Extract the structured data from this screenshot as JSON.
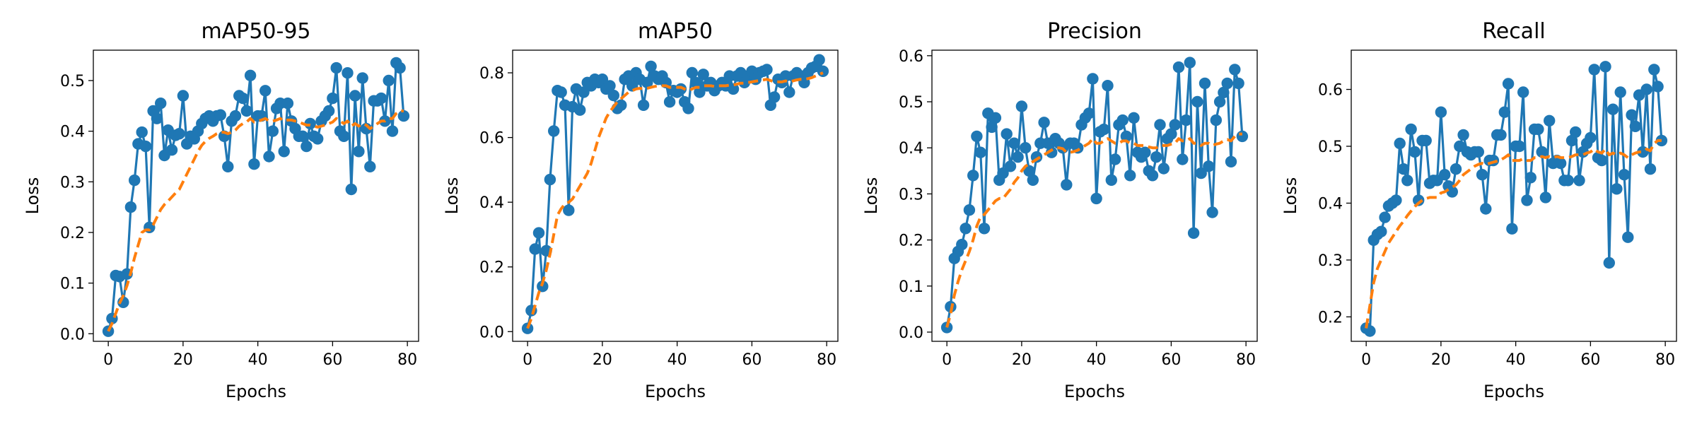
{
  "figure": {
    "colors": {
      "raw": "#1f77b4",
      "smooth": "#ff7f0e"
    }
  },
  "chart_data": [
    {
      "type": "line",
      "title": "mAP50-95",
      "xlabel": "Epochs",
      "ylabel": "Loss",
      "xlim": [
        -4,
        83
      ],
      "ylim": [
        -0.015,
        0.56
      ],
      "xticks": [
        0,
        20,
        40,
        60,
        80
      ],
      "xtick_labels": [
        "0",
        "20",
        "40",
        "60",
        "80"
      ],
      "yticks": [
        0.0,
        0.1,
        0.2,
        0.3,
        0.4,
        0.5
      ],
      "ytick_labels": [
        "0.0",
        "0.1",
        "0.2",
        "0.3",
        "0.4",
        "0.5"
      ],
      "x": [
        0,
        1,
        2,
        3,
        4,
        5,
        6,
        7,
        8,
        9,
        10,
        11,
        12,
        13,
        14,
        15,
        16,
        17,
        18,
        19,
        20,
        21,
        22,
        23,
        24,
        25,
        26,
        27,
        28,
        29,
        30,
        31,
        32,
        33,
        34,
        35,
        36,
        37,
        38,
        39,
        40,
        41,
        42,
        43,
        44,
        45,
        46,
        47,
        48,
        49,
        50,
        51,
        52,
        53,
        54,
        55,
        56,
        57,
        58,
        59,
        60,
        61,
        62,
        63,
        64,
        65,
        66,
        67,
        68,
        69,
        70,
        71,
        72,
        73,
        74,
        75,
        76,
        77,
        78,
        79
      ],
      "series": [
        {
          "style": "raw",
          "values": [
            0.005,
            0.03,
            0.115,
            0.113,
            0.062,
            0.118,
            0.25,
            0.303,
            0.375,
            0.398,
            0.37,
            0.21,
            0.44,
            0.425,
            0.455,
            0.352,
            0.402,
            0.363,
            0.392,
            0.395,
            0.47,
            0.375,
            0.39,
            0.385,
            0.4,
            0.415,
            0.425,
            0.43,
            0.42,
            0.43,
            0.432,
            0.39,
            0.33,
            0.42,
            0.43,
            0.47,
            0.465,
            0.44,
            0.51,
            0.335,
            0.43,
            0.43,
            0.48,
            0.35,
            0.4,
            0.445,
            0.455,
            0.36,
            0.455,
            0.42,
            0.405,
            0.39,
            0.39,
            0.37,
            0.415,
            0.39,
            0.385,
            0.42,
            0.43,
            0.44,
            0.465,
            0.525,
            0.4,
            0.39,
            0.515,
            0.285,
            0.47,
            0.36,
            0.505,
            0.405,
            0.33,
            0.46,
            0.46,
            0.465,
            0.42,
            0.5,
            0.4,
            0.535,
            0.525,
            0.43
          ]
        },
        {
          "style": "smooth",
          "values": [
            0.005,
            0.02,
            0.04,
            0.06,
            0.075,
            0.095,
            0.12,
            0.15,
            0.175,
            0.2,
            0.205,
            0.205,
            0.215,
            0.23,
            0.245,
            0.255,
            0.262,
            0.27,
            0.278,
            0.285,
            0.3,
            0.315,
            0.33,
            0.345,
            0.36,
            0.372,
            0.38,
            0.386,
            0.39,
            0.395,
            0.398,
            0.398,
            0.395,
            0.398,
            0.402,
            0.41,
            0.415,
            0.418,
            0.425,
            0.418,
            0.42,
            0.422,
            0.425,
            0.42,
            0.42,
            0.422,
            0.425,
            0.42,
            0.422,
            0.422,
            0.42,
            0.418,
            0.415,
            0.412,
            0.412,
            0.41,
            0.408,
            0.41,
            0.412,
            0.415,
            0.418,
            0.425,
            0.42,
            0.415,
            0.42,
            0.41,
            0.415,
            0.41,
            0.415,
            0.412,
            0.405,
            0.41,
            0.415,
            0.42,
            0.42,
            0.425,
            0.425,
            0.435,
            0.44,
            0.44
          ]
        }
      ]
    },
    {
      "type": "line",
      "title": "mAP50",
      "xlabel": "Epochs",
      "ylabel": "Loss",
      "xlim": [
        -4,
        83
      ],
      "ylim": [
        -0.03,
        0.87
      ],
      "xticks": [
        0,
        20,
        40,
        60,
        80
      ],
      "xtick_labels": [
        "0",
        "20",
        "40",
        "60",
        "80"
      ],
      "yticks": [
        0.0,
        0.2,
        0.4,
        0.6,
        0.8
      ],
      "ytick_labels": [
        "0.0",
        "0.2",
        "0.4",
        "0.6",
        "0.8"
      ],
      "x": [
        0,
        1,
        2,
        3,
        4,
        5,
        6,
        7,
        8,
        9,
        10,
        11,
        12,
        13,
        14,
        15,
        16,
        17,
        18,
        19,
        20,
        21,
        22,
        23,
        24,
        25,
        26,
        27,
        28,
        29,
        30,
        31,
        32,
        33,
        34,
        35,
        36,
        37,
        38,
        39,
        40,
        41,
        42,
        43,
        44,
        45,
        46,
        47,
        48,
        49,
        50,
        51,
        52,
        53,
        54,
        55,
        56,
        57,
        58,
        59,
        60,
        61,
        62,
        63,
        64,
        65,
        66,
        67,
        68,
        69,
        70,
        71,
        72,
        73,
        74,
        75,
        76,
        77,
        78,
        79
      ],
      "series": [
        {
          "style": "raw",
          "values": [
            0.01,
            0.065,
            0.255,
            0.305,
            0.14,
            0.25,
            0.47,
            0.62,
            0.745,
            0.74,
            0.7,
            0.375,
            0.695,
            0.75,
            0.685,
            0.74,
            0.77,
            0.76,
            0.78,
            0.77,
            0.78,
            0.75,
            0.76,
            0.73,
            0.69,
            0.7,
            0.78,
            0.79,
            0.76,
            0.8,
            0.78,
            0.7,
            0.77,
            0.82,
            0.79,
            0.78,
            0.79,
            0.77,
            0.71,
            0.745,
            0.74,
            0.75,
            0.71,
            0.69,
            0.8,
            0.77,
            0.74,
            0.795,
            0.76,
            0.77,
            0.745,
            0.76,
            0.77,
            0.76,
            0.79,
            0.75,
            0.79,
            0.8,
            0.77,
            0.79,
            0.805,
            0.78,
            0.8,
            0.805,
            0.81,
            0.7,
            0.725,
            0.78,
            0.77,
            0.79,
            0.74,
            0.79,
            0.8,
            0.79,
            0.77,
            0.8,
            0.815,
            0.82,
            0.84,
            0.805
          ]
        },
        {
          "style": "smooth",
          "values": [
            0.01,
            0.04,
            0.08,
            0.12,
            0.15,
            0.19,
            0.24,
            0.3,
            0.36,
            0.38,
            0.395,
            0.4,
            0.41,
            0.43,
            0.45,
            0.47,
            0.49,
            0.52,
            0.56,
            0.6,
            0.63,
            0.66,
            0.68,
            0.695,
            0.71,
            0.72,
            0.73,
            0.74,
            0.745,
            0.75,
            0.752,
            0.75,
            0.752,
            0.755,
            0.758,
            0.76,
            0.76,
            0.76,
            0.755,
            0.755,
            0.755,
            0.755,
            0.75,
            0.745,
            0.75,
            0.755,
            0.755,
            0.76,
            0.76,
            0.76,
            0.758,
            0.76,
            0.76,
            0.76,
            0.762,
            0.762,
            0.765,
            0.768,
            0.768,
            0.77,
            0.772,
            0.774,
            0.776,
            0.778,
            0.78,
            0.776,
            0.772,
            0.772,
            0.772,
            0.775,
            0.772,
            0.775,
            0.778,
            0.78,
            0.78,
            0.782,
            0.785,
            0.79,
            0.795,
            0.8
          ]
        }
      ]
    },
    {
      "type": "line",
      "title": "Precision",
      "xlabel": "Epochs",
      "ylabel": "Loss",
      "xlim": [
        -4,
        83
      ],
      "ylim": [
        -0.02,
        0.612
      ],
      "xticks": [
        0,
        20,
        40,
        60,
        80
      ],
      "xtick_labels": [
        "0",
        "20",
        "40",
        "60",
        "80"
      ],
      "yticks": [
        0.0,
        0.1,
        0.2,
        0.3,
        0.4,
        0.5,
        0.6
      ],
      "ytick_labels": [
        "0.0",
        "0.1",
        "0.2",
        "0.3",
        "0.4",
        "0.5",
        "0.6"
      ],
      "x": [
        0,
        1,
        2,
        3,
        4,
        5,
        6,
        7,
        8,
        9,
        10,
        11,
        12,
        13,
        14,
        15,
        16,
        17,
        18,
        19,
        20,
        21,
        22,
        23,
        24,
        25,
        26,
        27,
        28,
        29,
        30,
        31,
        32,
        33,
        34,
        35,
        36,
        37,
        38,
        39,
        40,
        41,
        42,
        43,
        44,
        45,
        46,
        47,
        48,
        49,
        50,
        51,
        52,
        53,
        54,
        55,
        56,
        57,
        58,
        59,
        60,
        61,
        62,
        63,
        64,
        65,
        66,
        67,
        68,
        69,
        70,
        71,
        72,
        73,
        74,
        75,
        76,
        77,
        78,
        79
      ],
      "series": [
        {
          "style": "raw",
          "values": [
            0.01,
            0.055,
            0.16,
            0.175,
            0.19,
            0.225,
            0.265,
            0.34,
            0.425,
            0.39,
            0.225,
            0.475,
            0.445,
            0.465,
            0.33,
            0.345,
            0.43,
            0.36,
            0.41,
            0.38,
            0.49,
            0.4,
            0.35,
            0.33,
            0.38,
            0.41,
            0.455,
            0.41,
            0.39,
            0.42,
            0.41,
            0.4,
            0.32,
            0.41,
            0.41,
            0.4,
            0.45,
            0.465,
            0.475,
            0.55,
            0.29,
            0.435,
            0.44,
            0.535,
            0.33,
            0.375,
            0.45,
            0.46,
            0.425,
            0.34,
            0.465,
            0.39,
            0.38,
            0.39,
            0.35,
            0.34,
            0.38,
            0.45,
            0.355,
            0.42,
            0.43,
            0.45,
            0.575,
            0.375,
            0.46,
            0.585,
            0.215,
            0.5,
            0.345,
            0.54,
            0.36,
            0.26,
            0.46,
            0.5,
            0.52,
            0.54,
            0.37,
            0.57,
            0.54,
            0.425
          ]
        },
        {
          "style": "smooth",
          "values": [
            0.01,
            0.04,
            0.08,
            0.11,
            0.135,
            0.155,
            0.175,
            0.2,
            0.23,
            0.25,
            0.255,
            0.265,
            0.275,
            0.285,
            0.29,
            0.29,
            0.3,
            0.31,
            0.325,
            0.335,
            0.35,
            0.36,
            0.365,
            0.37,
            0.375,
            0.38,
            0.385,
            0.39,
            0.395,
            0.4,
            0.4,
            0.398,
            0.39,
            0.39,
            0.392,
            0.395,
            0.4,
            0.405,
            0.41,
            0.42,
            0.41,
            0.41,
            0.415,
            0.42,
            0.415,
            0.41,
            0.41,
            0.415,
            0.415,
            0.41,
            0.41,
            0.405,
            0.405,
            0.405,
            0.402,
            0.4,
            0.4,
            0.405,
            0.405,
            0.405,
            0.408,
            0.41,
            0.42,
            0.415,
            0.415,
            0.42,
            0.41,
            0.41,
            0.405,
            0.41,
            0.41,
            0.405,
            0.408,
            0.41,
            0.415,
            0.418,
            0.415,
            0.425,
            0.43,
            0.43
          ]
        }
      ]
    },
    {
      "type": "line",
      "title": "Recall",
      "xlabel": "Epochs",
      "ylabel": "Loss",
      "xlim": [
        -4,
        83
      ],
      "ylim": [
        0.157,
        0.669
      ],
      "xticks": [
        0,
        20,
        40,
        60,
        80
      ],
      "xtick_labels": [
        "0",
        "20",
        "40",
        "60",
        "80"
      ],
      "yticks": [
        0.2,
        0.3,
        0.4,
        0.5,
        0.6
      ],
      "ytick_labels": [
        "0.2",
        "0.3",
        "0.4",
        "0.5",
        "0.6"
      ],
      "x": [
        0,
        1,
        2,
        3,
        4,
        5,
        6,
        7,
        8,
        9,
        10,
        11,
        12,
        13,
        14,
        15,
        16,
        17,
        18,
        19,
        20,
        21,
        22,
        23,
        24,
        25,
        26,
        27,
        28,
        29,
        30,
        31,
        32,
        33,
        34,
        35,
        36,
        37,
        38,
        39,
        40,
        41,
        42,
        43,
        44,
        45,
        46,
        47,
        48,
        49,
        50,
        51,
        52,
        53,
        54,
        55,
        56,
        57,
        58,
        59,
        60,
        61,
        62,
        63,
        64,
        65,
        66,
        67,
        68,
        69,
        70,
        71,
        72,
        73,
        74,
        75,
        76,
        77,
        78,
        79
      ],
      "series": [
        {
          "style": "raw",
          "values": [
            0.18,
            0.175,
            0.335,
            0.345,
            0.35,
            0.375,
            0.395,
            0.4,
            0.405,
            0.505,
            0.46,
            0.44,
            0.53,
            0.49,
            0.405,
            0.51,
            0.51,
            0.435,
            0.44,
            0.44,
            0.56,
            0.45,
            0.43,
            0.42,
            0.46,
            0.5,
            0.52,
            0.49,
            0.485,
            0.49,
            0.49,
            0.45,
            0.39,
            0.475,
            0.475,
            0.52,
            0.52,
            0.56,
            0.61,
            0.355,
            0.5,
            0.5,
            0.595,
            0.405,
            0.445,
            0.53,
            0.53,
            0.49,
            0.41,
            0.545,
            0.47,
            0.475,
            0.47,
            0.44,
            0.44,
            0.51,
            0.525,
            0.44,
            0.49,
            0.505,
            0.515,
            0.635,
            0.48,
            0.475,
            0.64,
            0.295,
            0.565,
            0.425,
            0.595,
            0.45,
            0.34,
            0.555,
            0.535,
            0.59,
            0.49,
            0.6,
            0.46,
            0.635,
            0.605,
            0.51
          ]
        },
        {
          "style": "smooth",
          "values": [
            0.18,
            0.22,
            0.26,
            0.285,
            0.3,
            0.315,
            0.33,
            0.34,
            0.35,
            0.36,
            0.368,
            0.378,
            0.386,
            0.394,
            0.4,
            0.405,
            0.408,
            0.41,
            0.41,
            0.41,
            0.418,
            0.42,
            0.424,
            0.428,
            0.432,
            0.44,
            0.45,
            0.455,
            0.46,
            0.465,
            0.468,
            0.47,
            0.468,
            0.47,
            0.472,
            0.474,
            0.476,
            0.48,
            0.485,
            0.475,
            0.475,
            0.475,
            0.478,
            0.475,
            0.475,
            0.48,
            0.48,
            0.482,
            0.48,
            0.482,
            0.48,
            0.482,
            0.48,
            0.48,
            0.48,
            0.482,
            0.485,
            0.485,
            0.485,
            0.488,
            0.49,
            0.495,
            0.49,
            0.488,
            0.495,
            0.485,
            0.488,
            0.485,
            0.488,
            0.485,
            0.48,
            0.485,
            0.488,
            0.49,
            0.49,
            0.495,
            0.492,
            0.505,
            0.51,
            0.51
          ]
        }
      ]
    }
  ]
}
